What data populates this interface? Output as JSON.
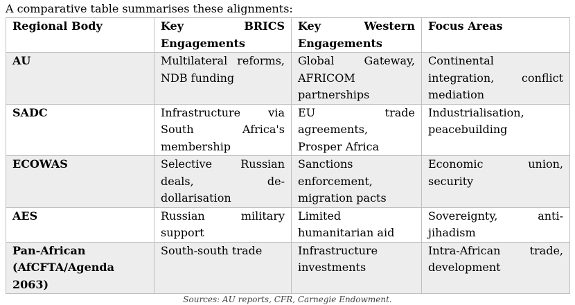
{
  "header": {
    "intro": "A comparative table summarises these alignments:"
  },
  "table": {
    "columns": [
      "Regional Body",
      "Key BRICS Engagements",
      "Key Western Engagements",
      "Focus Areas"
    ],
    "rows": [
      [
        "AU",
        "Multilateral reforms, NDB funding",
        "Global Gateway, AFRICOM partnerships",
        "Continental integration, conflict mediation"
      ],
      [
        "SADC",
        "Infrastructure via South Africa's membership",
        "EU trade agreements, Prosper Africa",
        "Industrialisation, peacebuilding"
      ],
      [
        "ECOWAS",
        "Selective Russian deals, de-dollarisation",
        "Sanctions enforcement, migration pacts",
        "Economic union, security"
      ],
      [
        "AES",
        "Russian military support",
        "Limited humanitarian aid",
        "Sovereignty, anti-jihadism"
      ],
      [
        "Pan-African (AfCFTA/Agenda 2063)",
        "South-south trade",
        "Infrastructure investments",
        "Intra-African trade, development"
      ]
    ]
  },
  "caption": "Sources: AU reports, CFR, Carnegie Endowment."
}
